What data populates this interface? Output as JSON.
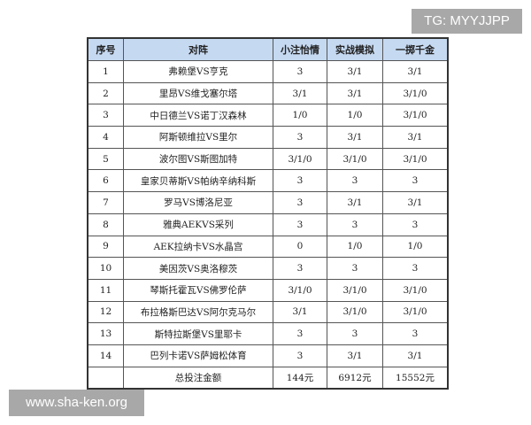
{
  "headers": [
    "序号",
    "对阵",
    "小注怡情",
    "实战模拟",
    "一掷千金"
  ],
  "rows": [
    [
      "1",
      "弗赖堡VS亨克",
      "3",
      "3/1",
      "3/1"
    ],
    [
      "2",
      "里昂VS维戈塞尔塔",
      "3/1",
      "3/1",
      "3/1/0"
    ],
    [
      "3",
      "中日德兰VS诺丁汉森林",
      "1/0",
      "1/0",
      "3/1/0"
    ],
    [
      "4",
      "阿斯顿维拉VS里尔",
      "3",
      "3/1",
      "3/1"
    ],
    [
      "5",
      "波尔图VS斯图加特",
      "3/1/0",
      "3/1/0",
      "3/1/0"
    ],
    [
      "6",
      "皇家贝蒂斯VS帕纳辛纳科斯",
      "3",
      "3",
      "3"
    ],
    [
      "7",
      "罗马VS博洛尼亚",
      "3",
      "3/1",
      "3/1"
    ],
    [
      "8",
      "雅典AEKVS采列",
      "3",
      "3",
      "3"
    ],
    [
      "9",
      "AEK拉纳卡VS水晶宫",
      "0",
      "1/0",
      "1/0"
    ],
    [
      "10",
      "美因茨VS奥洛穆茨",
      "3",
      "3",
      "3"
    ],
    [
      "11",
      "琴斯托霍瓦VS佛罗伦萨",
      "3/1/0",
      "3/1/0",
      "3/1/0"
    ],
    [
      "12",
      "布拉格斯巴达VS阿尔克马尔",
      "3/1",
      "3/1/0",
      "3/1/0"
    ],
    [
      "13",
      "斯特拉斯堡VS里耶卡",
      "3",
      "3",
      "3"
    ],
    [
      "14",
      "巴列卡诺VS萨姆松体育",
      "3",
      "3/1",
      "3/1"
    ]
  ],
  "total": [
    "",
    "总投注金额",
    "144元",
    "6912元",
    "15552元"
  ],
  "watermarks": {
    "tg": "TG: MYYJJPP",
    "site": "www.sha-ken.org"
  }
}
